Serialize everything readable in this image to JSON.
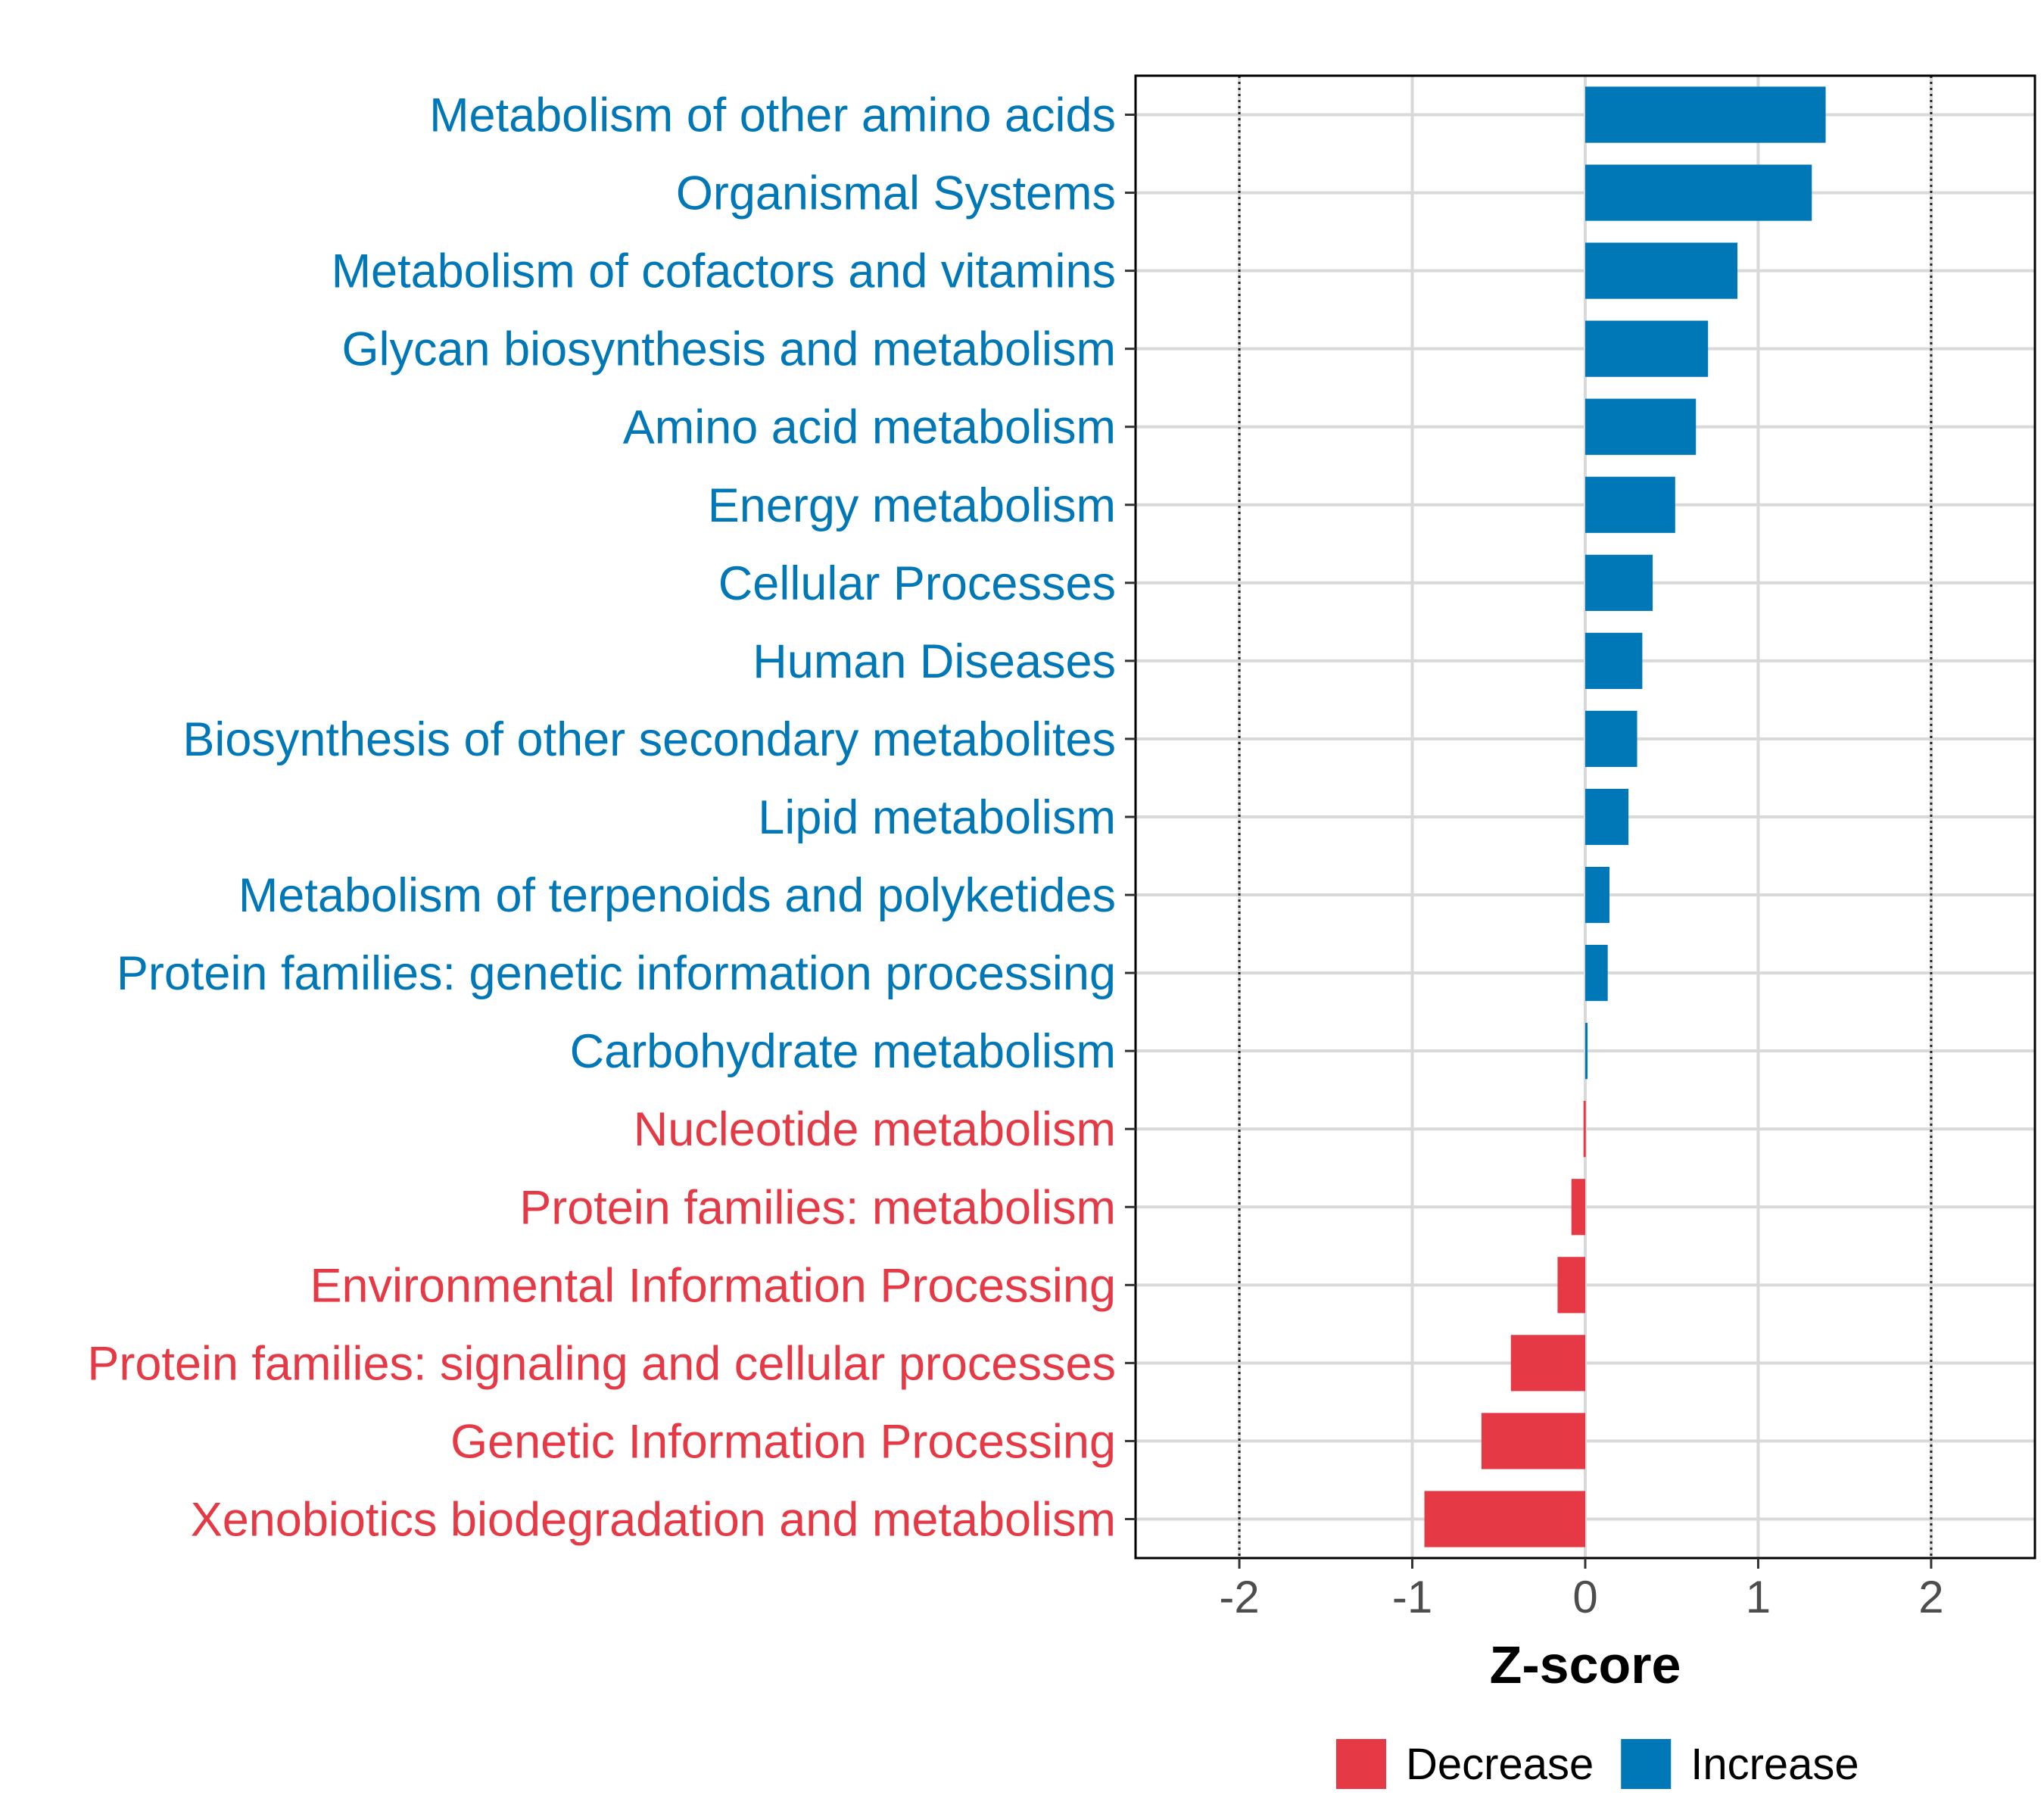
{
  "chart_data": {
    "type": "bar",
    "orientation": "horizontal",
    "title": "",
    "xlabel": "Z-score",
    "ylabel": "",
    "xlim": [
      -2.6,
      2.6
    ],
    "xticks": [
      -2,
      -1,
      0,
      1,
      2
    ],
    "tick_labels": [
      "-2",
      "-1",
      "0",
      "1",
      "2"
    ],
    "reference_lines": [
      -2,
      2
    ],
    "grid": true,
    "colors": {
      "Decrease": "#e63946",
      "Increase": "#0077b6",
      "gridline": "#d9d9d9",
      "tick_text": "#4d4d4d"
    },
    "categories": [
      "Metabolism of other amino acids",
      "Organismal Systems",
      "Metabolism of cofactors and vitamins",
      "Glycan biosynthesis and metabolism",
      "Amino acid metabolism",
      "Energy metabolism",
      "Cellular Processes",
      "Human Diseases",
      "Biosynthesis of other secondary metabolites",
      "Lipid metabolism",
      "Metabolism of terpenoids and polyketides",
      "Protein families: genetic information processing",
      "Carbohydrate metabolism",
      "Nucleotide metabolism",
      "Protein families: metabolism",
      "Environmental Information Processing",
      "Protein families: signaling and cellular processes",
      "Genetic Information Processing",
      "Xenobiotics biodegradation and metabolism"
    ],
    "values": [
      1.39,
      1.31,
      0.88,
      0.71,
      0.64,
      0.52,
      0.39,
      0.33,
      0.3,
      0.25,
      0.14,
      0.13,
      0.01,
      -0.01,
      -0.08,
      -0.16,
      -0.43,
      -0.6,
      -0.93
    ],
    "groups": [
      "Increase",
      "Increase",
      "Increase",
      "Increase",
      "Increase",
      "Increase",
      "Increase",
      "Increase",
      "Increase",
      "Increase",
      "Increase",
      "Increase",
      "Increase",
      "Decrease",
      "Decrease",
      "Decrease",
      "Decrease",
      "Decrease",
      "Decrease"
    ],
    "legend": {
      "position": "bottom",
      "entries": [
        "Decrease",
        "Increase"
      ]
    }
  }
}
